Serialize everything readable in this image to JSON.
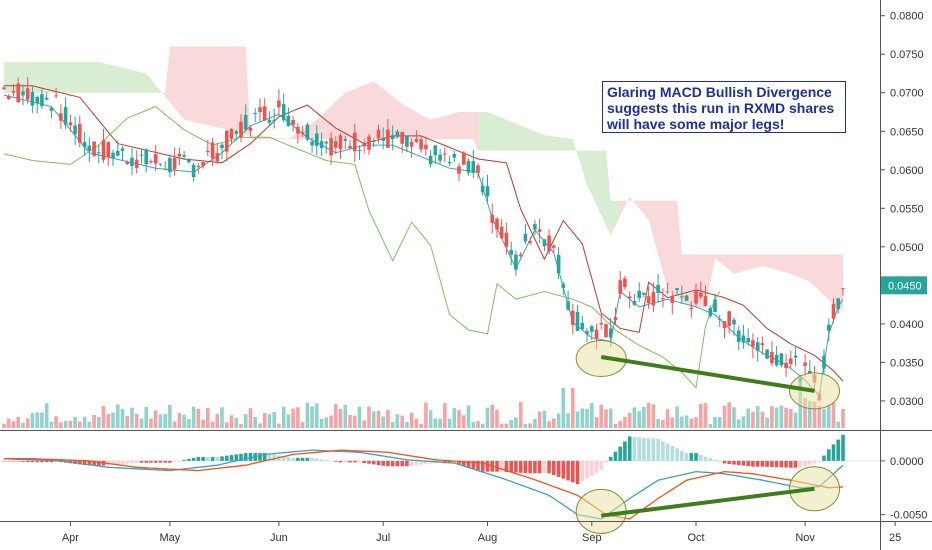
{
  "chart_data": [
    {
      "type": "candlestick",
      "symbol": "RXMD",
      "price_axis": {
        "ylim": [
          0.027,
          0.081
        ],
        "ticks": [
          "0.0800",
          "0.0750",
          "0.0700",
          "0.0650",
          "0.0600",
          "0.0550",
          "0.0500",
          "0.0450",
          "0.0400",
          "0.0350",
          "0.0300"
        ],
        "tick_values": [
          0.08,
          0.075,
          0.07,
          0.065,
          0.06,
          0.055,
          0.05,
          0.045,
          0.04,
          0.035,
          0.03
        ]
      },
      "last_price": "0.0450",
      "last_price_value": 0.045,
      "x_axis": {
        "labels": [
          "Apr",
          "May",
          "Jun",
          "Jul",
          "Aug",
          "Sep",
          "Oct",
          "Nov",
          "25"
        ],
        "label_index": [
          14,
          35,
          58,
          80,
          102,
          124,
          146,
          169,
          188
        ],
        "n_bars": 178
      },
      "annotation": [
        "Glaring MACD Bullish Divergence",
        "suggests this run in RXMD shares",
        "will have some major legs!"
      ],
      "price_trendline": {
        "from": [
          126,
          0.0357
        ],
        "to": [
          171,
          0.0313
        ],
        "color": "#3f7d1a"
      },
      "highlight_ellipses": [
        {
          "center": [
            126,
            0.0355
          ]
        },
        {
          "center": [
            171,
            0.0313
          ]
        }
      ],
      "colors": {
        "up": "#26a69a",
        "down": "#ef5350",
        "volume_up": "#8fd3cc",
        "volume_down": "#f6a3a3",
        "cloud_bear": "#f8d0d0",
        "cloud_bull": "#cfe8c8",
        "tenkan": "#3aa0c4",
        "kijun": "#c0392b",
        "lagging": "#7fbf5f"
      }
    },
    {
      "type": "macd",
      "ylim": [
        -0.0055,
        0.0025
      ],
      "ticks": [
        "0.0000",
        "-0.0050"
      ],
      "tick_values": [
        0,
        -0.005
      ],
      "divergence_line": {
        "from": [
          126,
          -0.0051
        ],
        "to": [
          171,
          -0.0026
        ],
        "color": "#3f7d1a"
      },
      "highlight_ellipses": [
        {
          "center": [
            126,
            -0.0047
          ]
        },
        {
          "center": [
            171,
            -0.0026
          ]
        }
      ],
      "colors": {
        "macd": "#3aa0c4",
        "signal": "#f4511e",
        "hist_pos_strong": "#26a69a",
        "hist_pos_weak": "#b2dfdb",
        "hist_neg_strong": "#ef5350",
        "hist_neg_weak": "#ffcdd2"
      }
    }
  ]
}
